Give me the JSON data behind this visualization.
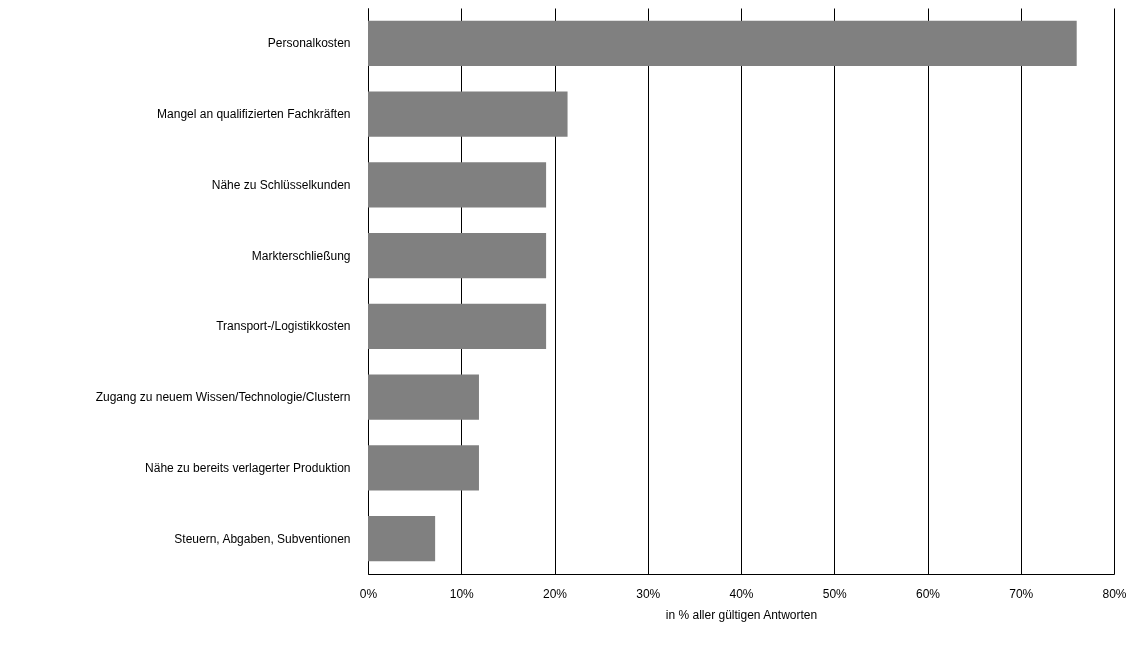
{
  "chart_data": {
    "type": "bar",
    "orientation": "horizontal",
    "xlabel": "in % aller gültigen Antworten",
    "categories": [
      "Personalkosten",
      "Mangel an qualifizierten Fachkräften",
      "Nähe zu Schlüsselkunden",
      "Markterschließung",
      "Transport-/Logistikkosten",
      "Zugang zu neuem Wissen/Technologie/Clustern",
      "Nähe zu bereits verlagerter Produktion",
      "Steuern, Abgaben, Subventionen"
    ],
    "values": [
      76,
      21.4,
      19.1,
      19.1,
      19.1,
      11.9,
      11.9,
      7.2
    ],
    "color": "#808080",
    "xlim": [
      0,
      80
    ],
    "xticks": [
      {
        "value": 0,
        "label": "0%"
      },
      {
        "value": 10,
        "label": "10%"
      },
      {
        "value": 20,
        "label": "20%"
      },
      {
        "value": 30,
        "label": "30%"
      },
      {
        "value": 40,
        "label": "40%"
      },
      {
        "value": 50,
        "label": "50%"
      },
      {
        "value": 60,
        "label": "60%"
      },
      {
        "value": 70,
        "label": "70%"
      },
      {
        "value": 80,
        "label": "80%"
      }
    ],
    "grid": "x"
  }
}
